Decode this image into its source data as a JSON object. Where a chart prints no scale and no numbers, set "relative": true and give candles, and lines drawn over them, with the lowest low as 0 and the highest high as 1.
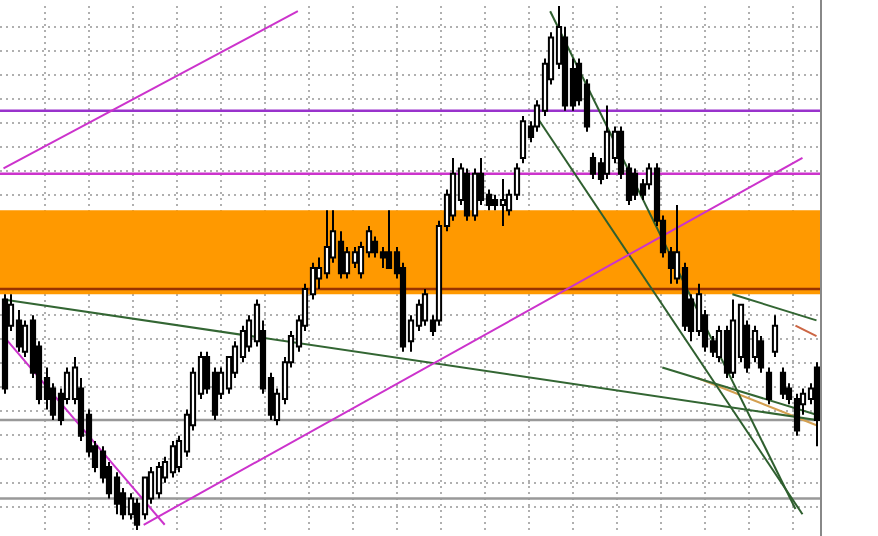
{
  "chart_data": {
    "type": "candlestick",
    "relative": true,
    "grid": true,
    "legend": false,
    "categories": [
      null,
      null,
      null,
      null,
      null,
      null,
      null,
      null,
      null,
      null,
      null,
      null,
      null,
      null,
      null,
      null,
      null,
      null,
      null,
      null,
      null,
      null,
      null,
      null,
      null,
      null,
      null,
      null,
      null,
      null,
      null,
      null,
      null,
      null,
      null,
      null,
      null,
      null,
      null,
      null,
      null,
      null,
      null,
      null,
      null,
      null,
      null,
      null,
      null,
      null,
      null,
      null,
      null,
      null,
      null,
      null,
      null,
      null,
      null,
      null,
      null,
      null,
      null,
      null,
      null,
      null,
      null,
      null,
      null,
      null,
      null,
      null,
      null,
      null,
      null,
      null,
      null,
      null,
      null,
      null,
      null,
      null,
      null,
      null,
      null,
      null,
      null,
      null,
      null,
      null,
      null,
      null,
      null,
      null,
      null,
      null,
      null,
      null,
      null,
      null,
      null,
      null,
      null,
      null,
      null,
      null,
      null,
      null,
      null,
      null,
      null,
      null,
      null,
      null,
      null,
      null,
      null
    ],
    "ohlc": [
      [
        0.44,
        0.45,
        0.26,
        0.27
      ],
      [
        0.39,
        0.45,
        0.38,
        0.43
      ],
      [
        0.4,
        0.42,
        0.34,
        0.35
      ],
      [
        0.34,
        0.4,
        0.33,
        0.39
      ],
      [
        0.4,
        0.41,
        0.29,
        0.3
      ],
      [
        0.35,
        0.36,
        0.24,
        0.25
      ],
      [
        0.29,
        0.31,
        0.23,
        0.25
      ],
      [
        0.27,
        0.28,
        0.21,
        0.22
      ],
      [
        0.26,
        0.27,
        0.2,
        0.21
      ],
      [
        0.25,
        0.31,
        0.24,
        0.3
      ],
      [
        0.25,
        0.33,
        0.24,
        0.31
      ],
      [
        0.27,
        0.29,
        0.17,
        0.18
      ],
      [
        0.22,
        0.23,
        0.14,
        0.15
      ],
      [
        0.16,
        0.17,
        0.11,
        0.12
      ],
      [
        0.15,
        0.16,
        0.09,
        0.1
      ],
      [
        0.12,
        0.13,
        0.06,
        0.07
      ],
      [
        0.1,
        0.11,
        0.03,
        0.05
      ],
      [
        0.07,
        0.08,
        0.02,
        0.03
      ],
      [
        0.03,
        0.07,
        0.02,
        0.06
      ],
      [
        0.05,
        0.06,
        0,
        0.01
      ],
      [
        0.03,
        0.1,
        0.02,
        0.1
      ],
      [
        0.06,
        0.12,
        0.05,
        0.11
      ],
      [
        0.07,
        0.13,
        0.06,
        0.12
      ],
      [
        0.1,
        0.14,
        0.09,
        0.13
      ],
      [
        0.11,
        0.17,
        0.1,
        0.16
      ],
      [
        0.12,
        0.18,
        0.11,
        0.17
      ],
      [
        0.15,
        0.23,
        0.14,
        0.22
      ],
      [
        0.2,
        0.31,
        0.19,
        0.3
      ],
      [
        0.26,
        0.34,
        0.25,
        0.33
      ],
      [
        0.33,
        0.34,
        0.26,
        0.27
      ],
      [
        0.3,
        0.31,
        0.21,
        0.22
      ],
      [
        0.26,
        0.31,
        0.25,
        0.3
      ],
      [
        0.27,
        0.33,
        0.26,
        0.33
      ],
      [
        0.3,
        0.36,
        0.29,
        0.35
      ],
      [
        0.33,
        0.39,
        0.32,
        0.38
      ],
      [
        0.35,
        0.41,
        0.34,
        0.4
      ],
      [
        0.36,
        0.44,
        0.35,
        0.43
      ],
      [
        0.38,
        0.4,
        0.26,
        0.27
      ],
      [
        0.29,
        0.3,
        0.21,
        0.22
      ],
      [
        0.21,
        0.27,
        0.2,
        0.26
      ],
      [
        0.25,
        0.33,
        0.24,
        0.32
      ],
      [
        0.32,
        0.38,
        0.31,
        0.37
      ],
      [
        0.35,
        0.41,
        0.34,
        0.4
      ],
      [
        0.39,
        0.47,
        0.38,
        0.46
      ],
      [
        0.45,
        0.51,
        0.44,
        0.5
      ],
      [
        0.48,
        0.52,
        0.46,
        0.5
      ],
      [
        0.49,
        0.61,
        0.48,
        0.54
      ],
      [
        0.52,
        0.61,
        0.51,
        0.57
      ],
      [
        0.55,
        0.57,
        0.48,
        0.49
      ],
      [
        0.49,
        0.54,
        0.48,
        0.53
      ],
      [
        0.51,
        0.54,
        0.5,
        0.53
      ],
      [
        0.49,
        0.55,
        0.48,
        0.54
      ],
      [
        0.53,
        0.58,
        0.52,
        0.57
      ],
      [
        0.55,
        0.56,
        0.52,
        0.53
      ],
      [
        0.53,
        0.54,
        0.5,
        0.52
      ],
      [
        0.53,
        0.61,
        0.5,
        0.5
      ],
      [
        0.53,
        0.54,
        0.48,
        0.49
      ],
      [
        0.5,
        0.51,
        0.34,
        0.35
      ],
      [
        0.36,
        0.41,
        0.34,
        0.4
      ],
      [
        0.39,
        0.44,
        0.38,
        0.43
      ],
      [
        0.4,
        0.46,
        0.39,
        0.45
      ],
      [
        0.4,
        0.41,
        0.37,
        0.38
      ],
      [
        0.4,
        0.59,
        0.39,
        0.58
      ],
      [
        0.58,
        0.65,
        0.57,
        0.64
      ],
      [
        0.6,
        0.71,
        0.59,
        0.68
      ],
      [
        0.63,
        0.7,
        0.62,
        0.69
      ],
      [
        0.68,
        0.69,
        0.59,
        0.6
      ],
      [
        0.6,
        0.69,
        0.59,
        0.68
      ],
      [
        0.68,
        0.71,
        0.62,
        0.63
      ],
      [
        0.64,
        0.65,
        0.61,
        0.62
      ],
      [
        0.63,
        0.64,
        0.61,
        0.62
      ],
      [
        0.62,
        0.67,
        0.58,
        0.63
      ],
      [
        0.61,
        0.65,
        0.6,
        0.64
      ],
      [
        0.64,
        0.7,
        0.63,
        0.69
      ],
      [
        0.71,
        0.79,
        0.7,
        0.78
      ],
      [
        0.77,
        0.78,
        0.74,
        0.75
      ],
      [
        0.77,
        0.82,
        0.76,
        0.81
      ],
      [
        0.8,
        0.9,
        0.79,
        0.89
      ],
      [
        0.86,
        0.95,
        0.85,
        0.94
      ],
      [
        0.89,
        1,
        0.88,
        0.96
      ],
      [
        0.94,
        0.96,
        0.8,
        0.81
      ],
      [
        0.88,
        0.9,
        0.8,
        0.81
      ],
      [
        0.89,
        0.9,
        0.81,
        0.82
      ],
      [
        0.85,
        0.86,
        0.76,
        0.77
      ],
      [
        0.71,
        0.72,
        0.67,
        0.68
      ],
      [
        0.7,
        0.71,
        0.66,
        0.67
      ],
      [
        0.68,
        0.81,
        0.67,
        0.76
      ],
      [
        0.71,
        0.77,
        0.7,
        0.76
      ],
      [
        0.76,
        0.77,
        0.67,
        0.68
      ],
      [
        0.69,
        0.7,
        0.62,
        0.63
      ],
      [
        0.68,
        0.69,
        0.63,
        0.64
      ],
      [
        0.66,
        0.67,
        0.63,
        0.64
      ],
      [
        0.66,
        0.7,
        0.65,
        0.69
      ],
      [
        0.69,
        0.7,
        0.58,
        0.59
      ],
      [
        0.59,
        0.6,
        0.52,
        0.53
      ],
      [
        0.53,
        0.54,
        0.47,
        0.5
      ],
      [
        0.48,
        0.62,
        0.47,
        0.53
      ],
      [
        0.5,
        0.51,
        0.38,
        0.39
      ],
      [
        0.44,
        0.45,
        0.36,
        0.38
      ],
      [
        0.38,
        0.47,
        0.37,
        0.45
      ],
      [
        0.41,
        0.42,
        0.34,
        0.35
      ],
      [
        0.36,
        0.37,
        0.33,
        0.34
      ],
      [
        0.33,
        0.39,
        0.32,
        0.38
      ],
      [
        0.38,
        0.39,
        0.29,
        0.3
      ],
      [
        0.3,
        0.44,
        0.29,
        0.4
      ],
      [
        0.33,
        0.43,
        0.32,
        0.43
      ],
      [
        0.39,
        0.4,
        0.3,
        0.31
      ],
      [
        0.33,
        0.39,
        0.32,
        0.38
      ],
      [
        0.36,
        0.37,
        0.3,
        0.31
      ],
      [
        0.3,
        0.31,
        0.24,
        0.25
      ],
      [
        0.34,
        0.41,
        0.33,
        0.39
      ],
      [
        0.3,
        0.31,
        0.25,
        0.26
      ],
      [
        0.27,
        0.28,
        0.24,
        0.25
      ],
      [
        0.25,
        0.26,
        0.18,
        0.19
      ],
      [
        0.24,
        0.27,
        0.22,
        0.26
      ],
      [
        0.25,
        0.28,
        0.24,
        0.27
      ],
      [
        0.31,
        0.32,
        0.16,
        0.21
      ]
    ],
    "series": [
      {
        "type": "line",
        "color": "#cc33cc",
        "values": [
          0.69,
          null,
          null,
          null,
          null,
          null,
          null,
          null,
          null,
          null,
          null,
          null,
          null,
          null,
          null,
          null,
          null,
          null,
          null,
          null,
          null,
          null,
          null,
          null,
          null,
          null,
          null,
          null,
          null,
          null,
          null,
          null,
          null,
          null,
          null,
          null,
          null,
          null,
          null,
          null,
          null,
          null,
          0.99,
          null,
          null,
          null,
          null,
          null,
          null,
          null,
          null,
          null,
          null,
          null,
          null,
          null,
          null,
          null,
          null,
          null,
          null,
          null,
          null,
          null,
          null,
          null,
          null,
          null,
          null,
          null,
          null,
          null,
          null,
          null,
          null,
          null,
          null,
          null,
          null,
          null,
          null,
          null,
          null,
          null,
          null,
          null,
          null,
          null,
          null,
          null,
          null,
          null,
          null,
          null,
          null,
          null,
          null,
          null,
          null,
          null,
          null,
          null,
          null,
          null,
          null,
          null,
          null,
          null,
          null,
          null,
          null,
          null,
          null,
          null,
          null,
          null,
          null
        ]
      },
      {
        "type": "line",
        "color": "#cc33cc",
        "values": [
          0.37,
          null,
          null,
          null,
          null,
          null,
          null,
          null,
          null,
          null,
          null,
          null,
          null,
          null,
          null,
          null,
          null,
          null,
          null,
          null,
          null,
          null,
          null,
          0.01,
          null,
          null,
          null,
          null,
          null,
          null,
          null,
          null,
          null,
          null,
          null,
          null,
          null,
          null,
          null,
          null,
          null,
          null,
          null,
          null,
          null,
          null,
          null,
          null,
          null,
          null,
          null,
          null,
          null,
          null,
          null,
          null,
          null,
          null,
          null,
          null,
          null,
          null,
          null,
          null,
          null,
          null,
          null,
          null,
          null,
          null,
          null,
          null,
          null,
          null,
          null,
          null,
          null,
          null,
          null,
          null,
          null,
          null,
          null,
          null,
          null,
          null,
          null,
          null,
          null,
          null,
          null,
          null,
          null,
          null,
          null,
          null,
          null,
          null,
          null,
          null,
          null,
          null,
          null,
          null,
          null,
          null,
          null,
          null,
          null,
          null,
          null,
          null,
          null,
          null,
          null,
          null,
          null
        ]
      },
      {
        "type": "line",
        "color": "#cc33cc",
        "values": [
          null,
          null,
          null,
          null,
          null,
          null,
          null,
          null,
          null,
          null,
          null,
          null,
          null,
          null,
          null,
          null,
          null,
          null,
          null,
          null,
          0.01,
          null,
          null,
          null,
          null,
          null,
          null,
          null,
          null,
          null,
          null,
          null,
          null,
          null,
          null,
          null,
          null,
          null,
          null,
          null,
          null,
          null,
          null,
          null,
          null,
          null,
          null,
          null,
          null,
          null,
          null,
          null,
          null,
          null,
          null,
          null,
          null,
          null,
          null,
          null,
          null,
          null,
          null,
          null,
          null,
          null,
          null,
          null,
          null,
          null,
          null,
          null,
          null,
          null,
          null,
          null,
          null,
          null,
          null,
          null,
          null,
          null,
          null,
          null,
          null,
          null,
          null,
          null,
          null,
          null,
          null,
          null,
          null,
          null,
          null,
          null,
          null,
          null,
          null,
          null,
          null,
          null,
          null,
          null,
          null,
          null,
          null,
          null,
          null,
          null,
          null,
          null,
          null,
          null,
          0.71,
          null,
          null
        ]
      },
      {
        "type": "line",
        "color": "#336633",
        "values": [
          0.44,
          null,
          null,
          null,
          null,
          null,
          null,
          null,
          null,
          null,
          null,
          null,
          null,
          null,
          null,
          null,
          null,
          null,
          null,
          null,
          null,
          null,
          null,
          null,
          null,
          null,
          null,
          null,
          null,
          null,
          null,
          null,
          null,
          null,
          null,
          null,
          null,
          null,
          null,
          null,
          null,
          null,
          null,
          null,
          null,
          null,
          null,
          null,
          null,
          null,
          null,
          null,
          null,
          null,
          null,
          null,
          null,
          null,
          null,
          null,
          null,
          null,
          null,
          null,
          null,
          null,
          null,
          null,
          null,
          null,
          null,
          null,
          null,
          null,
          null,
          null,
          null,
          null,
          null,
          null,
          null,
          null,
          null,
          null,
          null,
          null,
          null,
          null,
          null,
          null,
          null,
          null,
          null,
          null,
          null,
          null,
          null,
          null,
          null,
          null,
          null,
          null,
          null,
          null,
          null,
          null,
          null,
          null,
          null,
          null,
          null,
          null,
          null,
          null,
          null,
          null,
          0.21
        ]
      },
      {
        "type": "line",
        "color": "#2f5f2f",
        "values": [
          null,
          null,
          null,
          null,
          null,
          null,
          null,
          null,
          null,
          null,
          null,
          null,
          null,
          null,
          null,
          null,
          null,
          null,
          null,
          null,
          null,
          null,
          null,
          null,
          null,
          null,
          null,
          null,
          null,
          null,
          null,
          null,
          null,
          null,
          null,
          null,
          null,
          null,
          null,
          null,
          null,
          null,
          null,
          null,
          null,
          null,
          null,
          null,
          null,
          null,
          null,
          null,
          null,
          null,
          null,
          null,
          null,
          null,
          null,
          null,
          null,
          null,
          null,
          null,
          null,
          null,
          null,
          null,
          null,
          null,
          null,
          null,
          null,
          null,
          null,
          null,
          null,
          null,
          0.99,
          null,
          null,
          null,
          null,
          null,
          null,
          null,
          null,
          null,
          null,
          null,
          null,
          null,
          null,
          null,
          null,
          null,
          null,
          null,
          null,
          null,
          null,
          null,
          null,
          null,
          null,
          null,
          null,
          null,
          null,
          null,
          null,
          null,
          null,
          0.04,
          null,
          null,
          null
        ]
      },
      {
        "type": "line",
        "color": "#2f5f2f",
        "values": [
          null,
          null,
          null,
          null,
          null,
          null,
          null,
          null,
          null,
          null,
          null,
          null,
          null,
          null,
          null,
          null,
          null,
          null,
          null,
          null,
          null,
          null,
          null,
          null,
          null,
          null,
          null,
          null,
          null,
          null,
          null,
          null,
          null,
          null,
          null,
          null,
          null,
          null,
          null,
          null,
          null,
          null,
          null,
          null,
          null,
          null,
          null,
          null,
          null,
          null,
          null,
          null,
          null,
          null,
          null,
          null,
          null,
          null,
          null,
          null,
          null,
          null,
          null,
          null,
          null,
          null,
          null,
          null,
          null,
          null,
          null,
          null,
          null,
          null,
          null,
          null,
          0.79,
          null,
          null,
          null,
          null,
          null,
          null,
          null,
          null,
          null,
          null,
          null,
          null,
          null,
          null,
          null,
          null,
          null,
          null,
          null,
          null,
          null,
          null,
          null,
          null,
          null,
          null,
          null,
          null,
          null,
          null,
          null,
          null,
          null,
          null,
          null,
          null,
          null,
          0.03,
          null,
          null
        ]
      },
      {
        "type": "line",
        "color": "#336633",
        "values": [
          null,
          null,
          null,
          null,
          null,
          null,
          null,
          null,
          null,
          null,
          null,
          null,
          null,
          null,
          null,
          null,
          null,
          null,
          null,
          null,
          null,
          null,
          null,
          null,
          null,
          null,
          null,
          null,
          null,
          null,
          null,
          null,
          null,
          null,
          null,
          null,
          null,
          null,
          null,
          null,
          null,
          null,
          null,
          null,
          null,
          null,
          null,
          null,
          null,
          null,
          null,
          null,
          null,
          null,
          null,
          null,
          null,
          null,
          null,
          null,
          null,
          null,
          null,
          null,
          null,
          null,
          null,
          null,
          null,
          null,
          null,
          null,
          null,
          null,
          null,
          null,
          null,
          null,
          null,
          null,
          null,
          null,
          null,
          null,
          null,
          null,
          null,
          null,
          null,
          null,
          null,
          null,
          null,
          null,
          null,
          null,
          null,
          null,
          null,
          null,
          null,
          null,
          null,
          null,
          0.45,
          null,
          null,
          null,
          null,
          null,
          null,
          null,
          null,
          null,
          null,
          null,
          0.4
        ]
      },
      {
        "type": "line",
        "color": "#cc6644",
        "values": [
          null,
          null,
          null,
          null,
          null,
          null,
          null,
          null,
          null,
          null,
          null,
          null,
          null,
          null,
          null,
          null,
          null,
          null,
          null,
          null,
          null,
          null,
          null,
          null,
          null,
          null,
          null,
          null,
          null,
          null,
          null,
          null,
          null,
          null,
          null,
          null,
          null,
          null,
          null,
          null,
          null,
          null,
          null,
          null,
          null,
          null,
          null,
          null,
          null,
          null,
          null,
          null,
          null,
          null,
          null,
          null,
          null,
          null,
          null,
          null,
          null,
          null,
          null,
          null,
          null,
          null,
          null,
          null,
          null,
          null,
          null,
          null,
          null,
          null,
          null,
          null,
          null,
          null,
          null,
          null,
          null,
          null,
          null,
          null,
          null,
          null,
          null,
          null,
          null,
          null,
          null,
          null,
          null,
          null,
          null,
          null,
          null,
          null,
          null,
          null,
          null,
          null,
          null,
          null,
          null,
          null,
          null,
          null,
          null,
          null,
          null,
          null,
          null,
          0.39,
          null,
          null,
          0.37
        ]
      },
      {
        "type": "line",
        "color": "#336633",
        "values": [
          null,
          null,
          null,
          null,
          null,
          null,
          null,
          null,
          null,
          null,
          null,
          null,
          null,
          null,
          null,
          null,
          null,
          null,
          null,
          null,
          null,
          null,
          null,
          null,
          null,
          null,
          null,
          null,
          null,
          null,
          null,
          null,
          null,
          null,
          null,
          null,
          null,
          null,
          null,
          null,
          null,
          null,
          null,
          null,
          null,
          null,
          null,
          null,
          null,
          null,
          null,
          null,
          null,
          null,
          null,
          null,
          null,
          null,
          null,
          null,
          null,
          null,
          null,
          null,
          null,
          null,
          null,
          null,
          null,
          null,
          null,
          null,
          null,
          null,
          null,
          null,
          null,
          null,
          null,
          null,
          null,
          null,
          null,
          null,
          null,
          null,
          null,
          null,
          null,
          null,
          null,
          null,
          null,
          null,
          0.31,
          null,
          null,
          null,
          null,
          null,
          null,
          null,
          null,
          null,
          null,
          null,
          null,
          null,
          null,
          null,
          null,
          null,
          null,
          null,
          null,
          null,
          0.22
        ]
      },
      {
        "type": "line",
        "color": "#d4a050",
        "values": [
          null,
          null,
          null,
          null,
          null,
          null,
          null,
          null,
          null,
          null,
          null,
          null,
          null,
          null,
          null,
          null,
          null,
          null,
          null,
          null,
          null,
          null,
          null,
          null,
          null,
          null,
          null,
          null,
          null,
          null,
          null,
          null,
          null,
          null,
          null,
          null,
          null,
          null,
          null,
          null,
          null,
          null,
          null,
          null,
          null,
          null,
          null,
          null,
          null,
          null,
          null,
          null,
          null,
          null,
          null,
          null,
          null,
          null,
          null,
          null,
          null,
          null,
          null,
          null,
          null,
          null,
          null,
          null,
          null,
          null,
          null,
          null,
          null,
          null,
          null,
          null,
          null,
          null,
          null,
          null,
          null,
          null,
          null,
          null,
          null,
          null,
          null,
          null,
          null,
          null,
          null,
          null,
          null,
          null,
          null,
          null,
          null,
          null,
          null,
          0.29,
          null,
          null,
          null,
          null,
          null,
          null,
          null,
          null,
          null,
          null,
          null,
          null,
          null,
          null,
          null,
          null,
          0.2
        ]
      }
    ],
    "bands": [
      {
        "axis": "y",
        "from": 0.45,
        "to": 0.61,
        "color": "#ff9900"
      }
    ],
    "ref_lines": [
      {
        "axis": "y",
        "value": 0.8,
        "color": "#9933cc"
      },
      {
        "axis": "y",
        "value": 0.68,
        "color": "#cc33cc"
      },
      {
        "axis": "y",
        "value": 0.46,
        "color": "#993300"
      },
      {
        "axis": "y",
        "value": 0.21,
        "color": "#999999"
      },
      {
        "axis": "y",
        "value": 0.06,
        "color": "#999999"
      }
    ]
  }
}
